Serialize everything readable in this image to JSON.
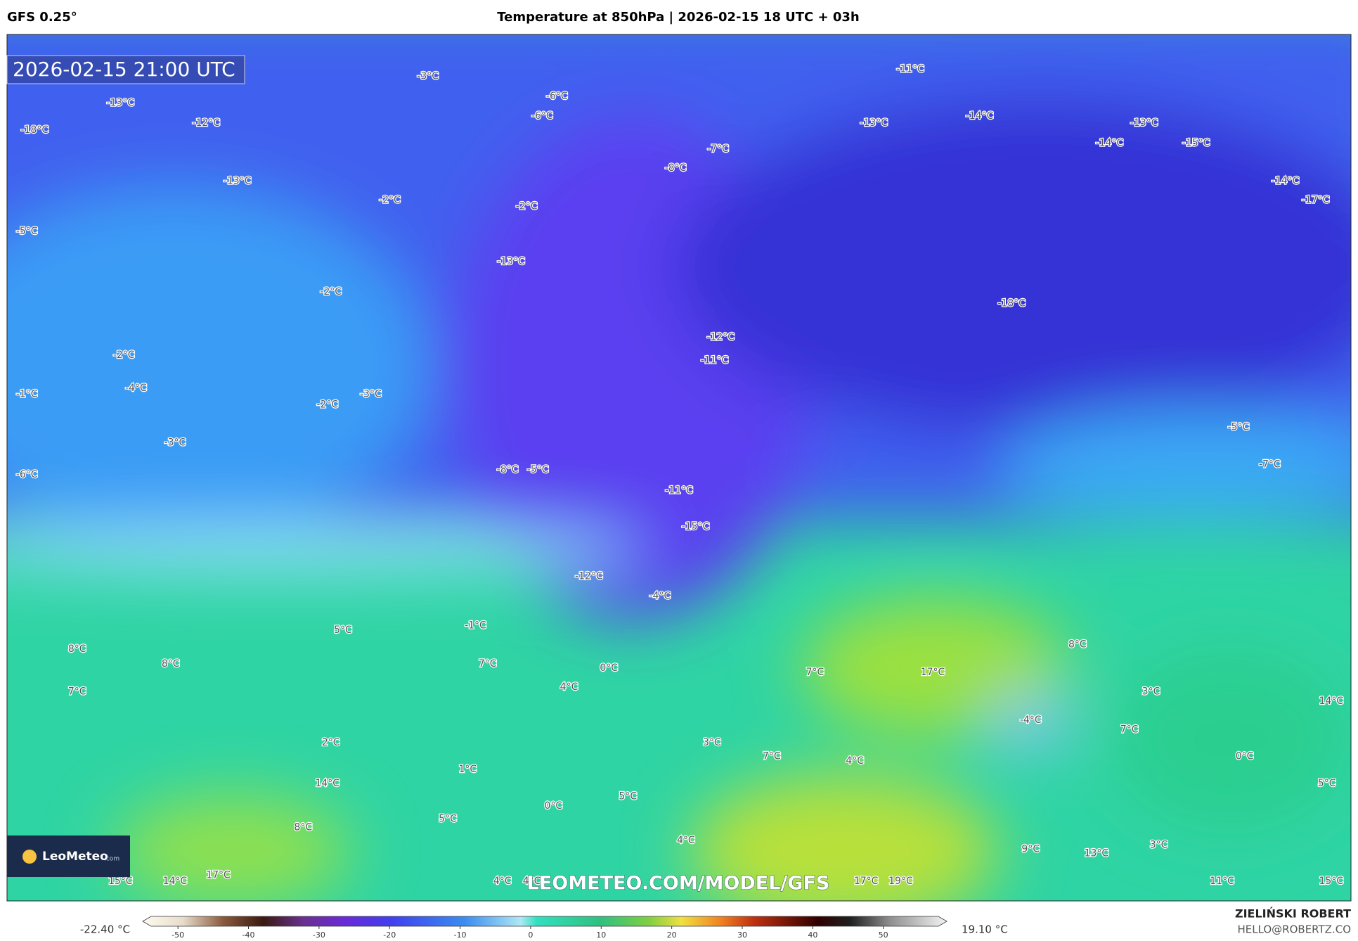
{
  "header": {
    "model": "GFS 0.25°",
    "title": "Temperature at 850hPa | 2026-02-15 18 UTC + 03h"
  },
  "timestamp": "2026-02-15 21:00 UTC",
  "watermark": "LEOMETEO.COM/MODEL/GFS",
  "logo": {
    "name": "LeoMeteo",
    "suffix": ".com"
  },
  "map_labels": [
    "-3°C",
    "-6°C",
    "-6°C",
    "-13°C",
    "-12°C",
    "-18°C",
    "-13°C",
    "-2°C",
    "-5°C",
    "-2°C",
    "-13°C",
    "-2°C",
    "-2°C",
    "-4°C",
    "-1°C",
    "-2°C",
    "-3°C",
    "-3°C",
    "-6°C",
    "-8°C",
    "-5°C",
    "-11°C",
    "-14°C",
    "-13°C",
    "-13°C",
    "-14°C",
    "-15°C",
    "-7°C",
    "-8°C",
    "-14°C",
    "-17°C",
    "-18°C",
    "-12°C",
    "-11°C",
    "-5°C",
    "-7°C",
    "-11°C",
    "-15°C",
    "-12°C",
    "-4°C",
    "-1°C",
    "5°C",
    "8°C",
    "8°C",
    "7°C",
    "7°C",
    "0°C",
    "4°C",
    "7°C",
    "17°C",
    "8°C",
    "3°C",
    "14°C",
    "-4°C",
    "7°C",
    "2°C",
    "3°C",
    "7°C",
    "4°C",
    "0°C",
    "1°C",
    "14°C",
    "5°C",
    "5°C",
    "0°C",
    "5°C",
    "8°C",
    "4°C",
    "9°C",
    "3°C",
    "13°C",
    "15°C",
    "14°C",
    "17°C",
    "4°C",
    "4°C",
    "17°C",
    "19°C",
    "11°C",
    "15°C"
  ],
  "colorbar": {
    "min_label": "-22.40 °C",
    "max_label": "19.10 °C",
    "range": [
      -55,
      59
    ],
    "ticks": [
      -50,
      -40,
      -30,
      -20,
      -10,
      0,
      10,
      20,
      30,
      40,
      50
    ]
  },
  "credit": {
    "author": "ZIELIŃSKI ROBERT",
    "email": "HELLO@ROBERTZ.CO"
  }
}
